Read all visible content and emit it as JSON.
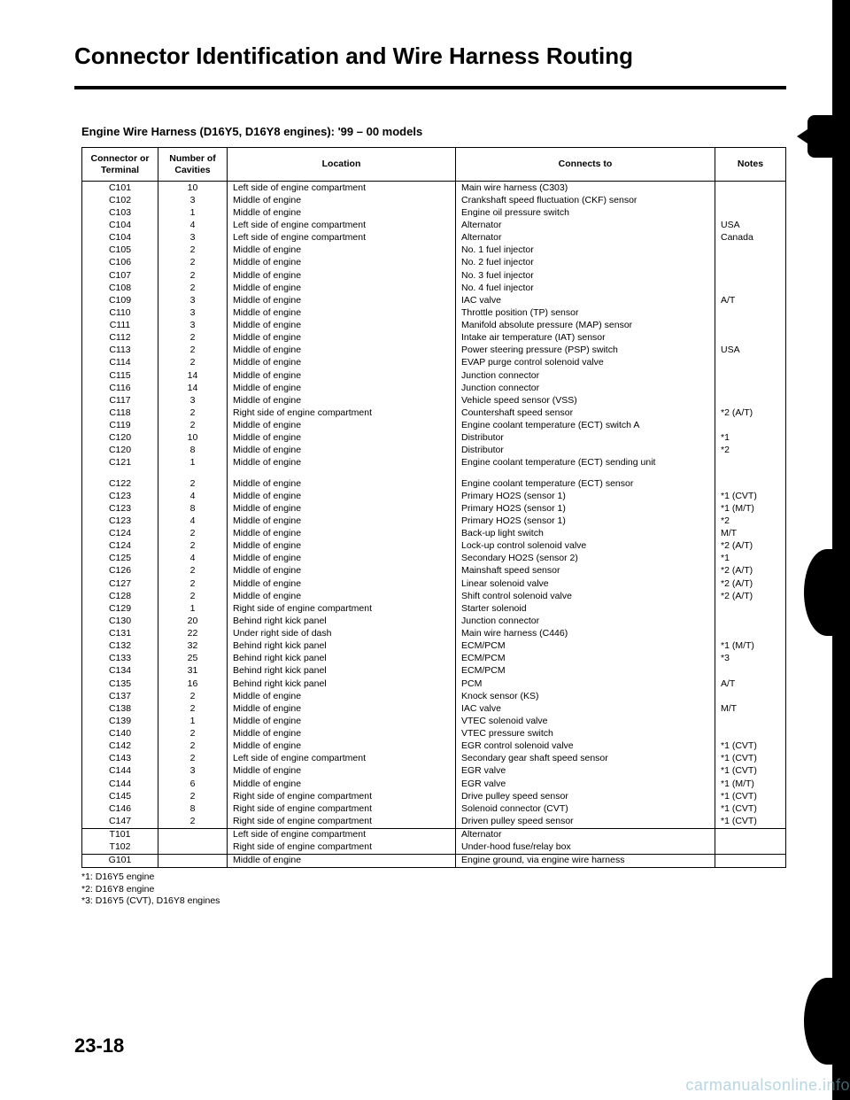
{
  "title": "Connector Identification and Wire Harness Routing",
  "subtitle": "Engine Wire Harness (D16Y5, D16Y8 engines): '99 – 00 models",
  "columns": {
    "conn": "Connector or\nTerminal",
    "cav": "Number of\nCavities",
    "loc": "Location",
    "to": "Connects to",
    "notes": "Notes"
  },
  "rows": [
    {
      "c": "C101",
      "n": "10",
      "l": "Left side of engine compartment",
      "t": "Main wire harness (C303)",
      "x": ""
    },
    {
      "c": "C102",
      "n": "3",
      "l": "Middle of engine",
      "t": "Crankshaft speed fluctuation (CKF) sensor",
      "x": ""
    },
    {
      "c": "C103",
      "n": "1",
      "l": "Middle of engine",
      "t": "Engine oil pressure switch",
      "x": ""
    },
    {
      "c": "C104",
      "n": "4",
      "l": "Left side of engine compartment",
      "t": "Alternator",
      "x": "USA"
    },
    {
      "c": "C104",
      "n": "3",
      "l": "Left side of engine compartment",
      "t": "Alternator",
      "x": "Canada"
    },
    {
      "c": "C105",
      "n": "2",
      "l": "Middle of engine",
      "t": "No. 1 fuel injector",
      "x": ""
    },
    {
      "c": "C106",
      "n": "2",
      "l": "Middle of engine",
      "t": "No. 2 fuel injector",
      "x": ""
    },
    {
      "c": "C107",
      "n": "2",
      "l": "Middle of engine",
      "t": "No. 3 fuel injector",
      "x": ""
    },
    {
      "c": "C108",
      "n": "2",
      "l": "Middle of engine",
      "t": "No. 4 fuel injector",
      "x": ""
    },
    {
      "c": "C109",
      "n": "3",
      "l": "Middle of engine",
      "t": "IAC valve",
      "x": "A/T"
    },
    {
      "c": "C110",
      "n": "3",
      "l": "Middle of engine",
      "t": "Throttle position (TP) sensor",
      "x": ""
    },
    {
      "c": "C111",
      "n": "3",
      "l": "Middle of engine",
      "t": "Manifold absolute pressure (MAP) sensor",
      "x": ""
    },
    {
      "c": "C112",
      "n": "2",
      "l": "Middle of engine",
      "t": "Intake air temperature (IAT) sensor",
      "x": ""
    },
    {
      "c": "C113",
      "n": "2",
      "l": "Middle of engine",
      "t": "Power steering pressure (PSP) switch",
      "x": "USA"
    },
    {
      "c": "C114",
      "n": "2",
      "l": "Middle of engine",
      "t": "EVAP purge control solenoid valve",
      "x": ""
    },
    {
      "c": "C115",
      "n": "14",
      "l": "Middle of engine",
      "t": "Junction connector",
      "x": ""
    },
    {
      "c": "C116",
      "n": "14",
      "l": "Middle of engine",
      "t": "Junction connector",
      "x": ""
    },
    {
      "c": "C117",
      "n": "3",
      "l": "Middle of engine",
      "t": "Vehicle speed sensor (VSS)",
      "x": ""
    },
    {
      "c": "C118",
      "n": "2",
      "l": "Right side of engine compartment",
      "t": "Countershaft speed sensor",
      "x": "*2 (A/T)"
    },
    {
      "c": "C119",
      "n": "2",
      "l": "Middle of engine",
      "t": "Engine coolant temperature (ECT) switch A",
      "x": ""
    },
    {
      "c": "C120",
      "n": "10",
      "l": "Middle of engine",
      "t": "Distributor",
      "x": "*1"
    },
    {
      "c": "C120",
      "n": "8",
      "l": "Middle of engine",
      "t": "Distributor",
      "x": "*2"
    },
    {
      "c": "C121",
      "n": "1",
      "l": "Middle of engine",
      "t": "Engine coolant temperature (ECT) sending unit",
      "x": ""
    },
    {
      "blank": true
    },
    {
      "c": "C122",
      "n": "2",
      "l": "Middle of engine",
      "t": "Engine coolant temperature (ECT) sensor",
      "x": ""
    },
    {
      "c": "C123",
      "n": "4",
      "l": "Middle of engine",
      "t": "Primary HO2S (sensor 1)",
      "x": "*1 (CVT)"
    },
    {
      "c": "C123",
      "n": "8",
      "l": "Middle of engine",
      "t": "Primary HO2S (sensor 1)",
      "x": "*1 (M/T)"
    },
    {
      "c": "C123",
      "n": "4",
      "l": "Middle of engine",
      "t": "Primary HO2S (sensor 1)",
      "x": "*2"
    },
    {
      "c": "C124",
      "n": "2",
      "l": "Middle of engine",
      "t": "Back-up light switch",
      "x": "M/T"
    },
    {
      "c": "C124",
      "n": "2",
      "l": "Middle of engine",
      "t": "Lock-up control solenoid valve",
      "x": "*2 (A/T)"
    },
    {
      "c": "C125",
      "n": "4",
      "l": "Middle of engine",
      "t": "Secondary HO2S (sensor 2)",
      "x": "*1"
    },
    {
      "c": "C126",
      "n": "2",
      "l": "Middle of engine",
      "t": "Mainshaft speed sensor",
      "x": "*2 (A/T)"
    },
    {
      "c": "C127",
      "n": "2",
      "l": "Middle of engine",
      "t": "Linear solenoid valve",
      "x": "*2 (A/T)"
    },
    {
      "c": "C128",
      "n": "2",
      "l": "Middle of engine",
      "t": "Shift control solenoid valve",
      "x": "*2 (A/T)"
    },
    {
      "c": "C129",
      "n": "1",
      "l": "Right side of engine compartment",
      "t": "Starter solenoid",
      "x": ""
    },
    {
      "c": "C130",
      "n": "20",
      "l": "Behind right kick panel",
      "t": "Junction connector",
      "x": ""
    },
    {
      "c": "C131",
      "n": "22",
      "l": "Under right side of dash",
      "t": "Main wire harness (C446)",
      "x": ""
    },
    {
      "c": "C132",
      "n": "32",
      "l": "Behind right kick panel",
      "t": "ECM/PCM",
      "x": "*1 (M/T)"
    },
    {
      "c": "C133",
      "n": "25",
      "l": "Behind right kick panel",
      "t": "ECM/PCM",
      "x": "*3"
    },
    {
      "c": "C134",
      "n": "31",
      "l": "Behind right kick panel",
      "t": "ECM/PCM",
      "x": ""
    },
    {
      "c": "C135",
      "n": "16",
      "l": "Behind right kick panel",
      "t": "PCM",
      "x": "A/T"
    },
    {
      "c": "C137",
      "n": "2",
      "l": "Middle of engine",
      "t": "Knock sensor (KS)",
      "x": ""
    },
    {
      "c": "C138",
      "n": "2",
      "l": "Middle of engine",
      "t": "IAC valve",
      "x": "M/T"
    },
    {
      "c": "C139",
      "n": "1",
      "l": "Middle of engine",
      "t": "VTEC solenoid valve",
      "x": ""
    },
    {
      "c": "C140",
      "n": "2",
      "l": "Middle of engine",
      "t": "VTEC pressure switch",
      "x": ""
    },
    {
      "c": "C142",
      "n": "2",
      "l": "Middle of engine",
      "t": "EGR control solenoid valve",
      "x": "*1 (CVT)"
    },
    {
      "c": "C143",
      "n": "2",
      "l": "Left side of engine compartment",
      "t": "Secondary gear shaft speed sensor",
      "x": "*1 (CVT)"
    },
    {
      "c": "C144",
      "n": "3",
      "l": "Middle of engine",
      "t": "EGR valve",
      "x": "*1 (CVT)"
    },
    {
      "c": "C144",
      "n": "6",
      "l": "Middle of engine",
      "t": "EGR valve",
      "x": "*1 (M/T)"
    },
    {
      "c": "C145",
      "n": "2",
      "l": "Right side of engine compartment",
      "t": "Drive pulley speed sensor",
      "x": "*1 (CVT)"
    },
    {
      "c": "C146",
      "n": "8",
      "l": "Right side of engine compartment",
      "t": "Solenoid connector (CVT)",
      "x": "*1 (CVT)"
    },
    {
      "c": "C147",
      "n": "2",
      "l": "Right side of engine compartment",
      "t": "Driven pulley speed sensor",
      "x": "*1 (CVT)"
    }
  ],
  "rows2": [
    {
      "c": "T101",
      "n": "",
      "l": "Left side of engine compartment",
      "t": "Alternator",
      "x": ""
    },
    {
      "c": "T102",
      "n": "",
      "l": "Right side of engine compartment",
      "t": "Under-hood fuse/relay box",
      "x": ""
    }
  ],
  "rows3": [
    {
      "c": "G101",
      "n": "",
      "l": "Middle of engine",
      "t": "Engine ground, via engine wire harness",
      "x": ""
    }
  ],
  "footnotes": [
    "*1: D16Y5 engine",
    "*2: D16Y8 engine",
    "*3: D16Y5 (CVT), D16Y8 engines"
  ],
  "pagenum": "23-18",
  "watermark": "carmanualsonline.info"
}
